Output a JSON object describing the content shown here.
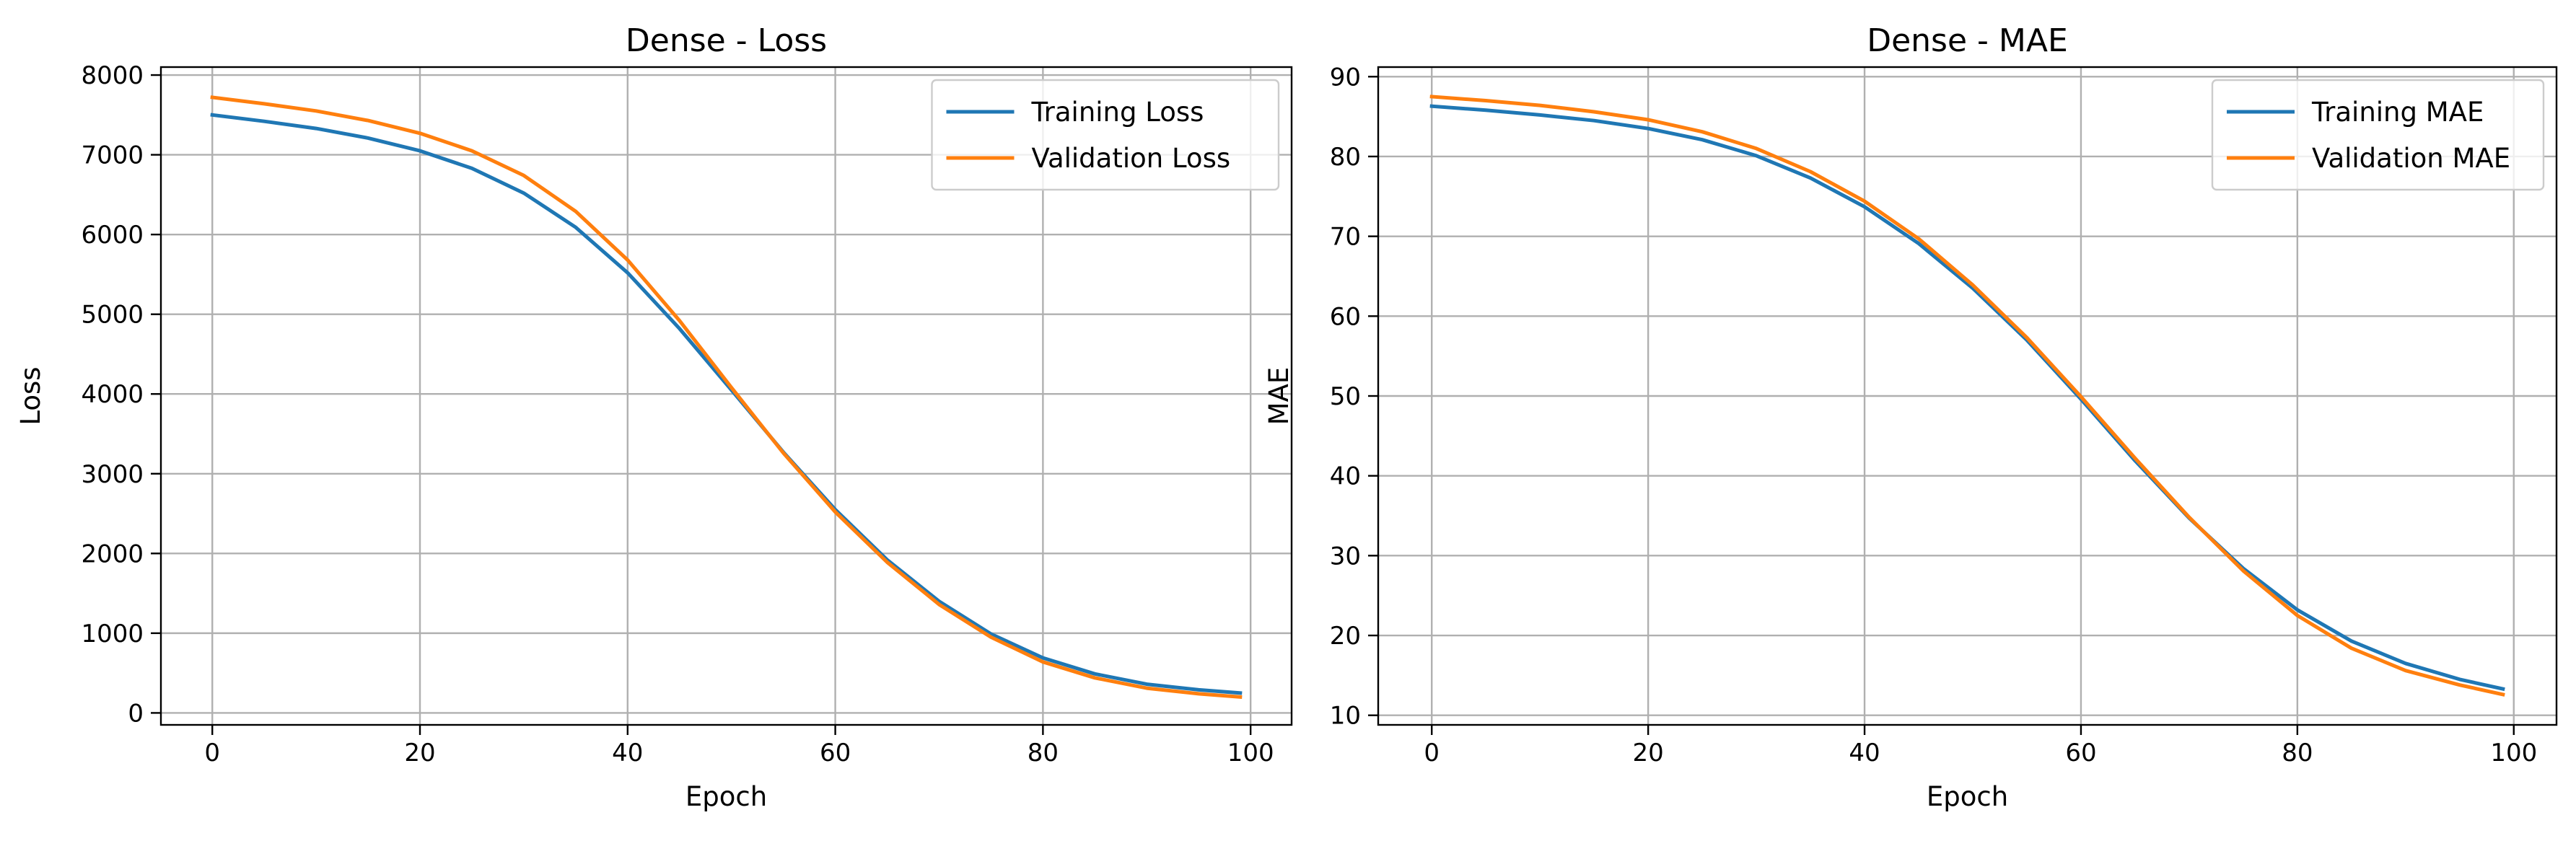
{
  "chart_data": [
    {
      "type": "line",
      "title": "Dense - Loss",
      "xlabel": "Epoch",
      "ylabel": "Loss",
      "xlim": [
        -4.95,
        103.95
      ],
      "ylim": [
        -150,
        8100
      ],
      "xticks": [
        0,
        20,
        40,
        60,
        80,
        100
      ],
      "yticks": [
        0,
        1000,
        2000,
        3000,
        4000,
        5000,
        6000,
        7000,
        8000
      ],
      "grid": true,
      "legend_position": "top-right",
      "x": [
        0,
        5,
        10,
        15,
        20,
        25,
        30,
        35,
        40,
        45,
        50,
        55,
        60,
        65,
        70,
        75,
        80,
        85,
        90,
        95,
        99
      ],
      "series": [
        {
          "name": "Training Loss",
          "color": "#1f77b4",
          "values": [
            7500,
            7420,
            7330,
            7210,
            7050,
            6830,
            6520,
            6090,
            5520,
            4820,
            4050,
            3270,
            2550,
            1920,
            1400,
            990,
            690,
            490,
            360,
            290,
            250
          ]
        },
        {
          "name": "Validation Loss",
          "color": "#ff7f0e",
          "values": [
            7720,
            7640,
            7550,
            7430,
            7270,
            7050,
            6740,
            6290,
            5680,
            4920,
            4080,
            3260,
            2520,
            1890,
            1360,
            950,
            640,
            440,
            310,
            240,
            200
          ]
        }
      ]
    },
    {
      "type": "line",
      "title": "Dense - MAE",
      "xlabel": "Epoch",
      "ylabel": "MAE",
      "xlim": [
        -4.95,
        103.95
      ],
      "ylim": [
        8.8,
        91.2
      ],
      "xticks": [
        0,
        20,
        40,
        60,
        80,
        100
      ],
      "yticks": [
        10,
        20,
        30,
        40,
        50,
        60,
        70,
        80,
        90
      ],
      "grid": true,
      "legend_position": "top-right",
      "x": [
        0,
        5,
        10,
        15,
        20,
        25,
        30,
        35,
        40,
        45,
        50,
        55,
        60,
        65,
        70,
        75,
        80,
        85,
        90,
        95,
        99
      ],
      "series": [
        {
          "name": "Training MAE",
          "color": "#1f77b4",
          "values": [
            86.3,
            85.8,
            85.2,
            84.5,
            83.5,
            82.1,
            80.1,
            77.3,
            73.7,
            69.1,
            63.5,
            57.0,
            49.6,
            41.9,
            34.7,
            28.4,
            23.2,
            19.3,
            16.5,
            14.5,
            13.3
          ]
        },
        {
          "name": "Validation MAE",
          "color": "#ff7f0e",
          "values": [
            87.5,
            87.0,
            86.4,
            85.6,
            84.6,
            83.1,
            81.0,
            78.1,
            74.4,
            69.7,
            63.9,
            57.3,
            49.9,
            42.2,
            34.8,
            28.1,
            22.5,
            18.4,
            15.6,
            13.8,
            12.6
          ]
        }
      ]
    }
  ]
}
